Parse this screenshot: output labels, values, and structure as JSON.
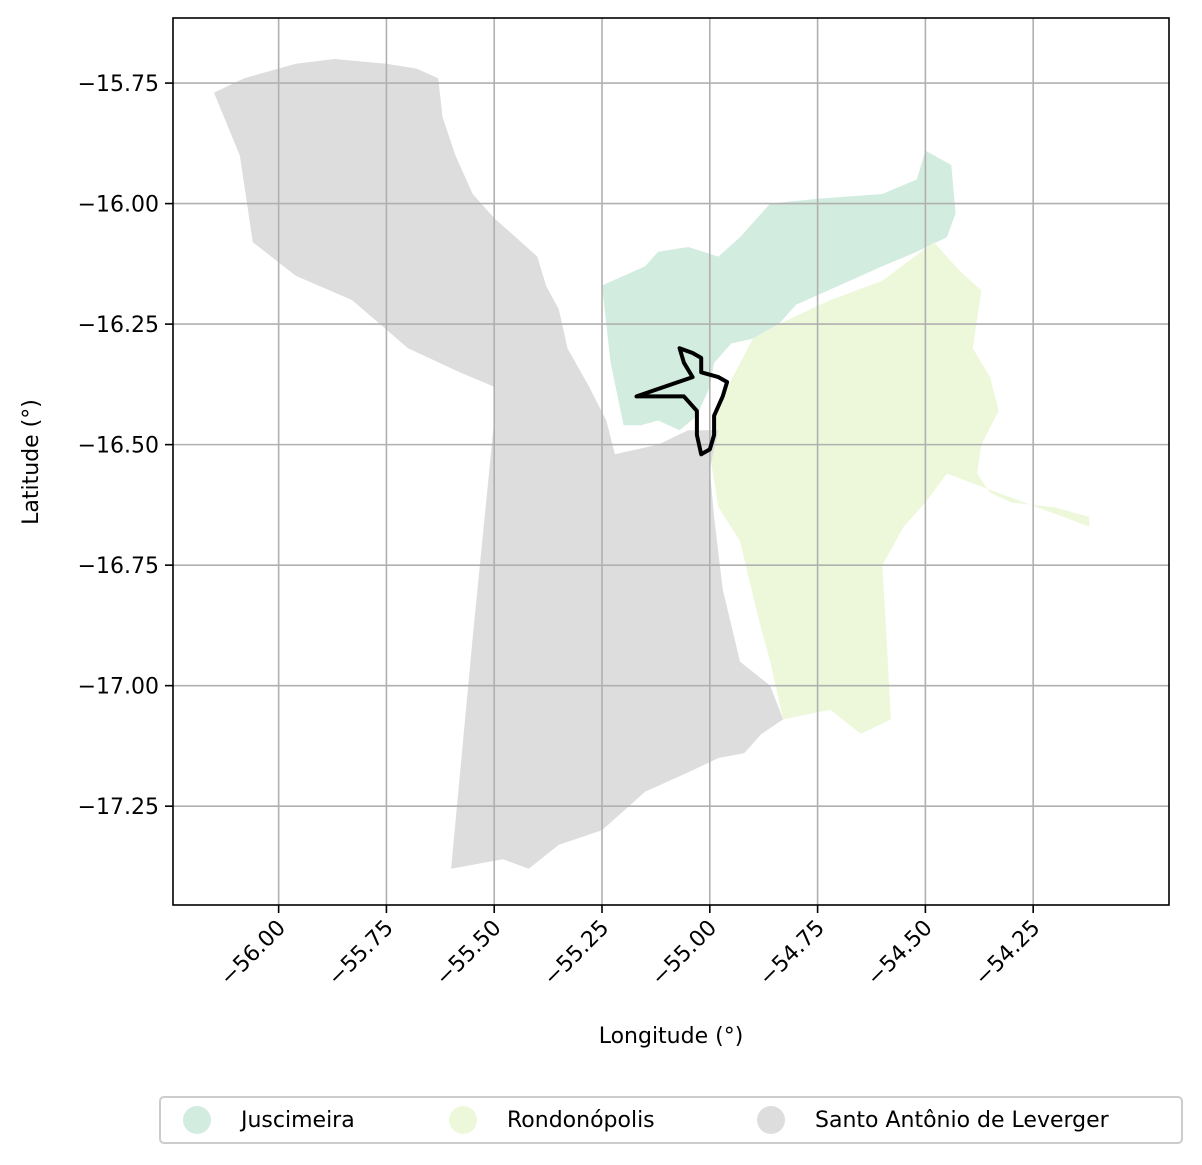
{
  "chart_data": {
    "type": "map",
    "xlabel": "Longitude (°)",
    "ylabel": "Latitude (°)",
    "xlim": [
      -56.245,
      -53.935
    ],
    "ylim": [
      -17.455,
      -15.615
    ],
    "x_ticks": [
      -56.0,
      -55.75,
      -55.5,
      -55.25,
      -55.0,
      -54.75,
      -54.5,
      -54.25
    ],
    "x_tick_labels": [
      "−56.00",
      "−55.75",
      "−55.50",
      "−55.25",
      "−55.00",
      "−54.75",
      "−54.50",
      "−54.25"
    ],
    "y_ticks": [
      -15.75,
      -16.0,
      -16.25,
      -16.5,
      -16.75,
      -17.0,
      -17.25
    ],
    "y_tick_labels": [
      "−15.75",
      "−16.00",
      "−16.25",
      "−16.50",
      "−16.75",
      "−17.00",
      "−17.25"
    ],
    "grid": true,
    "legend_position": "bottom",
    "regions": [
      {
        "name": "Juscimeira",
        "color": "#d2ece0",
        "polygon": [
          [
            -55.25,
            -16.17
          ],
          [
            -55.2,
            -16.15
          ],
          [
            -55.15,
            -16.13
          ],
          [
            -55.12,
            -16.1
          ],
          [
            -55.05,
            -16.09
          ],
          [
            -54.98,
            -16.11
          ],
          [
            -54.93,
            -16.07
          ],
          [
            -54.86,
            -16.0
          ],
          [
            -54.75,
            -15.99
          ],
          [
            -54.6,
            -15.98
          ],
          [
            -54.52,
            -15.95
          ],
          [
            -54.5,
            -15.89
          ],
          [
            -54.44,
            -15.92
          ],
          [
            -54.43,
            -16.02
          ],
          [
            -54.45,
            -16.07
          ],
          [
            -54.52,
            -16.1
          ],
          [
            -54.6,
            -16.13
          ],
          [
            -54.7,
            -16.17
          ],
          [
            -54.8,
            -16.21
          ],
          [
            -54.84,
            -16.25
          ],
          [
            -54.9,
            -16.28
          ],
          [
            -54.95,
            -16.29
          ],
          [
            -54.99,
            -16.33
          ],
          [
            -55.0,
            -16.38
          ],
          [
            -55.03,
            -16.44
          ],
          [
            -55.07,
            -16.47
          ],
          [
            -55.12,
            -16.45
          ],
          [
            -55.16,
            -16.46
          ],
          [
            -55.2,
            -16.46
          ],
          [
            -55.23,
            -16.33
          ]
        ]
      },
      {
        "name": "Rondonópolis",
        "color": "#edf8db",
        "polygon": [
          [
            -54.84,
            -16.25
          ],
          [
            -54.72,
            -16.2
          ],
          [
            -54.6,
            -16.16
          ],
          [
            -54.48,
            -16.08
          ],
          [
            -54.42,
            -16.14
          ],
          [
            -54.37,
            -16.18
          ],
          [
            -54.39,
            -16.3
          ],
          [
            -54.35,
            -16.36
          ],
          [
            -54.33,
            -16.43
          ],
          [
            -54.37,
            -16.5
          ],
          [
            -54.38,
            -16.56
          ],
          [
            -54.35,
            -16.6
          ],
          [
            -54.3,
            -16.62
          ],
          [
            -54.2,
            -16.63
          ],
          [
            -54.12,
            -16.65
          ],
          [
            -54.12,
            -16.67
          ],
          [
            -54.3,
            -16.61
          ],
          [
            -54.45,
            -16.56
          ],
          [
            -54.5,
            -16.62
          ],
          [
            -54.55,
            -16.67
          ],
          [
            -54.6,
            -16.75
          ],
          [
            -54.59,
            -16.9
          ],
          [
            -54.58,
            -17.07
          ],
          [
            -54.65,
            -17.1
          ],
          [
            -54.72,
            -17.05
          ],
          [
            -54.83,
            -17.07
          ],
          [
            -54.86,
            -16.95
          ],
          [
            -54.89,
            -16.85
          ],
          [
            -54.93,
            -16.7
          ],
          [
            -54.98,
            -16.63
          ],
          [
            -55.0,
            -16.52
          ],
          [
            -54.99,
            -16.45
          ],
          [
            -54.97,
            -16.4
          ],
          [
            -54.9,
            -16.28
          ]
        ]
      },
      {
        "name": "Santo Antônio de Leverger",
        "color": "#dddddd",
        "polygon": [
          [
            -56.15,
            -15.77
          ],
          [
            -56.08,
            -15.74
          ],
          [
            -55.96,
            -15.71
          ],
          [
            -55.87,
            -15.7
          ],
          [
            -55.75,
            -15.71
          ],
          [
            -55.68,
            -15.72
          ],
          [
            -55.63,
            -15.74
          ],
          [
            -55.62,
            -15.82
          ],
          [
            -55.59,
            -15.9
          ],
          [
            -55.55,
            -15.98
          ],
          [
            -55.5,
            -16.03
          ],
          [
            -55.45,
            -16.07
          ],
          [
            -55.4,
            -16.11
          ],
          [
            -55.38,
            -16.17
          ],
          [
            -55.35,
            -16.22
          ],
          [
            -55.33,
            -16.3
          ],
          [
            -55.28,
            -16.38
          ],
          [
            -55.24,
            -16.45
          ],
          [
            -55.22,
            -16.52
          ],
          [
            -55.12,
            -16.5
          ],
          [
            -55.05,
            -16.47
          ],
          [
            -54.98,
            -16.47
          ],
          [
            -55.0,
            -16.55
          ],
          [
            -54.99,
            -16.65
          ],
          [
            -54.97,
            -16.8
          ],
          [
            -54.93,
            -16.95
          ],
          [
            -54.86,
            -17.0
          ],
          [
            -54.83,
            -17.07
          ],
          [
            -54.88,
            -17.1
          ],
          [
            -54.92,
            -17.14
          ],
          [
            -54.98,
            -17.15
          ],
          [
            -55.05,
            -17.18
          ],
          [
            -55.15,
            -17.22
          ],
          [
            -55.25,
            -17.3
          ],
          [
            -55.35,
            -17.33
          ],
          [
            -55.42,
            -17.38
          ],
          [
            -55.48,
            -17.36
          ],
          [
            -55.6,
            -17.38
          ],
          [
            -55.55,
            -16.9
          ],
          [
            -55.5,
            -16.45
          ],
          [
            -55.5,
            -16.38
          ],
          [
            -55.58,
            -16.35
          ],
          [
            -55.7,
            -16.3
          ],
          [
            -55.83,
            -16.2
          ],
          [
            -55.96,
            -16.15
          ],
          [
            -56.06,
            -16.08
          ],
          [
            -56.09,
            -15.9
          ]
        ]
      }
    ],
    "highlight_outline": {
      "color": "#000000",
      "polygon": [
        [
          -55.07,
          -16.3
        ],
        [
          -55.04,
          -16.31
        ],
        [
          -55.02,
          -16.32
        ],
        [
          -55.02,
          -16.35
        ],
        [
          -54.98,
          -16.36
        ],
        [
          -54.96,
          -16.37
        ],
        [
          -54.97,
          -16.4
        ],
        [
          -54.99,
          -16.44
        ],
        [
          -54.99,
          -16.48
        ],
        [
          -55.0,
          -16.51
        ],
        [
          -55.02,
          -16.52
        ],
        [
          -55.03,
          -16.48
        ],
        [
          -55.03,
          -16.43
        ],
        [
          -55.06,
          -16.4
        ],
        [
          -55.1,
          -16.4
        ],
        [
          -55.17,
          -16.4
        ],
        [
          -55.04,
          -16.36
        ],
        [
          -55.06,
          -16.33
        ]
      ]
    }
  },
  "legend": {
    "items": [
      {
        "label": "Juscimeira",
        "color": "#d2ece0"
      },
      {
        "label": "Rondonópolis",
        "color": "#edf8db"
      },
      {
        "label": "Santo Antônio de Leverger",
        "color": "#dddddd"
      }
    ]
  }
}
